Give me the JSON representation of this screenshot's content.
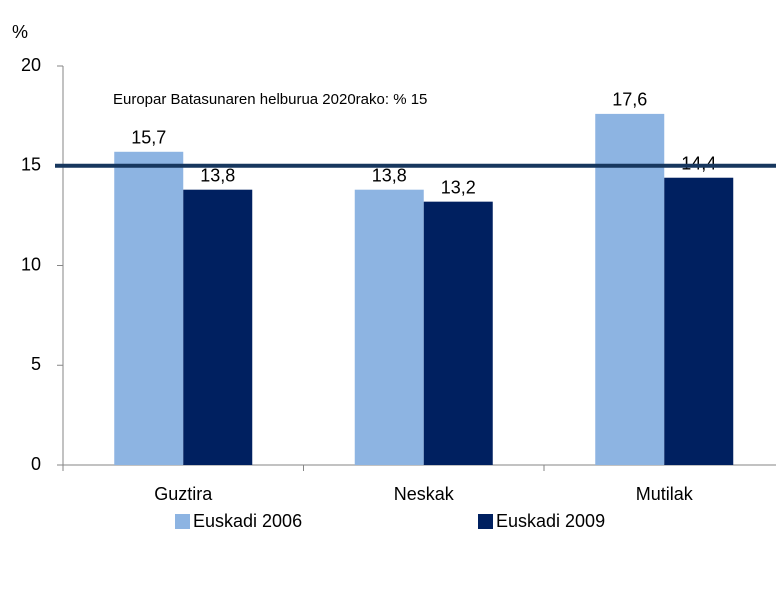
{
  "chart_data": {
    "type": "bar",
    "y_label": "%",
    "categories": [
      "Guztira",
      "Neskak",
      "Mutilak"
    ],
    "series": [
      {
        "name": "Euskadi 2006",
        "color": "#8db4e2",
        "values": [
          15.7,
          13.8,
          17.6
        ],
        "value_labels": [
          "15,7",
          "13,8",
          "17,6"
        ]
      },
      {
        "name": "Euskadi 2009",
        "color": "#002060",
        "values": [
          13.8,
          13.2,
          14.4
        ],
        "value_labels": [
          "13,8",
          "13,2",
          "14,4"
        ]
      }
    ],
    "ylim": [
      0,
      20
    ],
    "yticks": [
      0,
      5,
      10,
      15,
      20
    ],
    "target_line": {
      "value": 15,
      "label": "Europar Batasunaren helburua 2020rako: % 15",
      "color": "#17375e"
    },
    "legend": "bottom"
  }
}
